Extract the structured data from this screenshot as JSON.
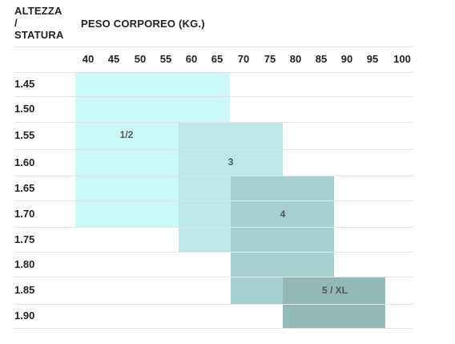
{
  "header": {
    "height_title": "ALTEZZA\n/\nSTATURA",
    "weight_title": "PESO CORPOREO (KG.)"
  },
  "weights": [
    "40",
    "45",
    "50",
    "55",
    "60",
    "65",
    "70",
    "75",
    "80",
    "85",
    "90",
    "95",
    "100"
  ],
  "heights": [
    "1.45",
    "1.50",
    "1.55",
    "1.60",
    "1.65",
    "1.70",
    "1.75",
    "1.80",
    "1.85",
    "1.90"
  ],
  "sizes": [
    {
      "label": "1/2",
      "color": "#cbf8f8",
      "weight_range": [
        "40",
        "65"
      ],
      "height_range": [
        "1.45",
        "1.70"
      ]
    },
    {
      "label": "3",
      "color": "#bde8e8",
      "weight_range": [
        "60",
        "75"
      ],
      "height_range": [
        "1.55",
        "1.75"
      ]
    },
    {
      "label": "4",
      "color": "#a6d0d0",
      "weight_range": [
        "70",
        "85"
      ],
      "height_range": [
        "1.65",
        "1.85"
      ]
    },
    {
      "label": "5 / XL",
      "color": "#93b8b6",
      "weight_range": [
        "80",
        "95"
      ],
      "height_range": [
        "1.85",
        "1.90"
      ]
    }
  ]
}
